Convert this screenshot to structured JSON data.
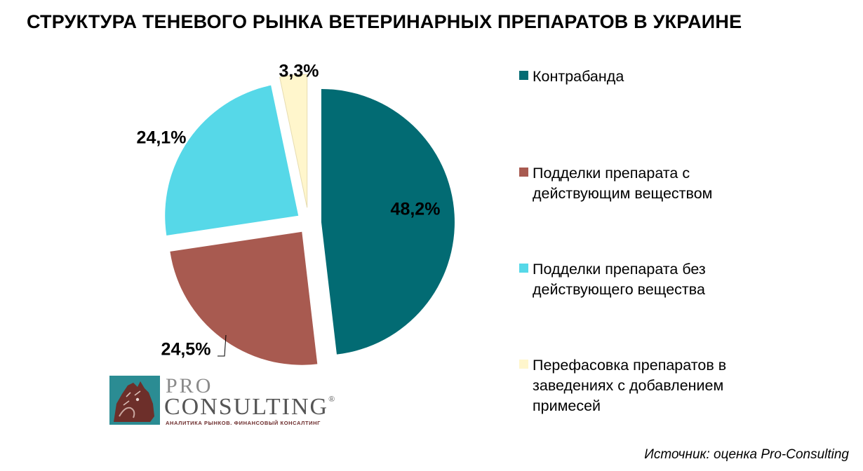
{
  "chart_data": {
    "type": "pie",
    "title": "СТРУКТУРА ТЕНЕВОГО РЫНКА ВЕТЕРИНАРНЫХ ПРЕПАРАТОВ В УКРАИНЕ",
    "exploded": true,
    "start_angle_deg": 0,
    "direction": "clockwise",
    "legend_position": "right",
    "slices": [
      {
        "name": "Контрабанда",
        "value": 48.2,
        "label": "48,2%",
        "color": "#026b73"
      },
      {
        "name": "Подделки препарата с действующим веществом",
        "value": 24.5,
        "label": "24,5%",
        "color": "#a85a50"
      },
      {
        "name": "Подделки препарата без действующего вещества",
        "value": 24.1,
        "label": "24,1%",
        "color": "#56d8e8"
      },
      {
        "name": "Перефасовка препаратов в заведениях с добавлением примесей",
        "value": 3.3,
        "label": "3,3%",
        "color": "#fff6cc"
      }
    ]
  },
  "logo": {
    "line1": "PRO",
    "line2": "CONSULTING",
    "registered": "®",
    "tagline": "АНАЛИТИКА РЫНКОВ. ФИНАНСОВЫЙ КОНСАЛТИНГ"
  },
  "source": "Источник: оценка Pro-Consulting"
}
